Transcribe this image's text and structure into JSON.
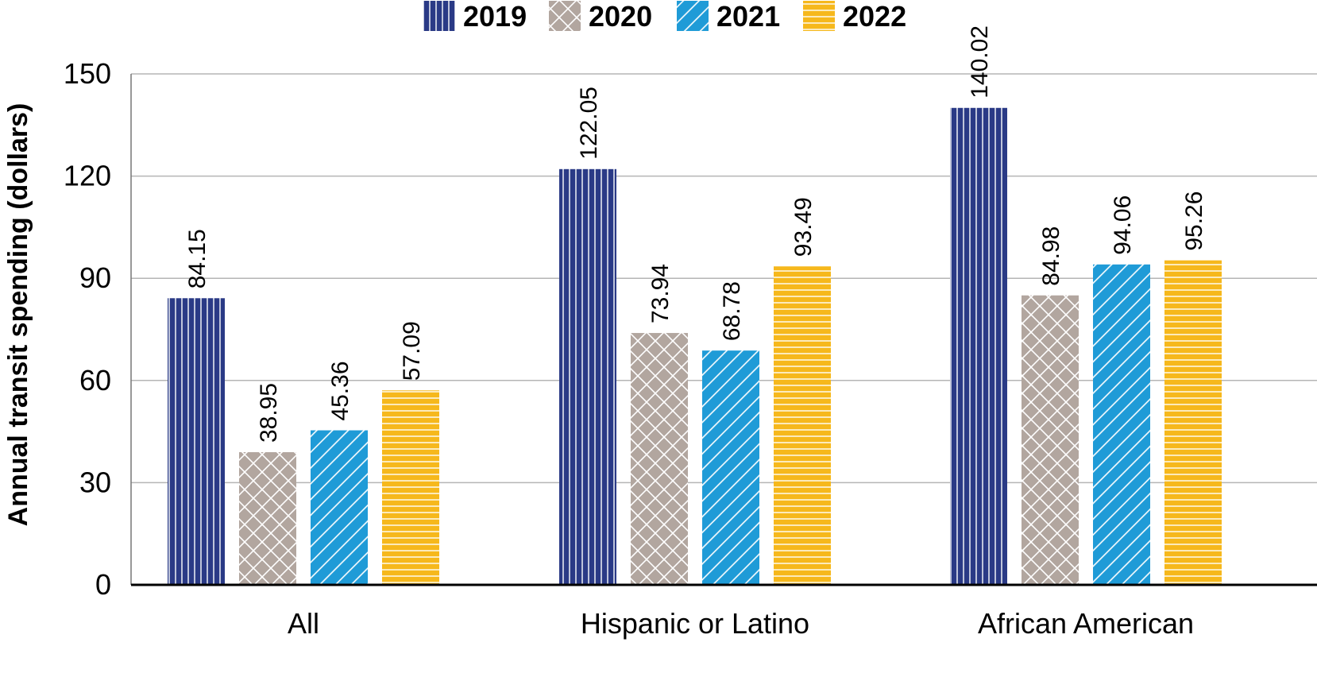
{
  "chart_data": {
    "type": "bar",
    "title": "",
    "xlabel": "",
    "ylabel": "Annual transit spending (dollars)",
    "ylim": [
      0,
      150
    ],
    "yticks": [
      0,
      30,
      60,
      90,
      120,
      150
    ],
    "grid": true,
    "legend_position": "top-center",
    "categories": [
      "All",
      "Hispanic or Latino",
      "African American"
    ],
    "series": [
      {
        "name": "2019",
        "values": [
          84.15,
          122.05,
          140.02
        ],
        "color": "#2a3a86",
        "pattern": "vertical-lines"
      },
      {
        "name": "2020",
        "values": [
          38.95,
          73.94,
          84.98
        ],
        "color": "#b2a69f",
        "pattern": "crosshatch"
      },
      {
        "name": "2021",
        "values": [
          45.36,
          68.78,
          94.06
        ],
        "color": "#1f9bd7",
        "pattern": "diagonal-lines"
      },
      {
        "name": "2022",
        "values": [
          57.09,
          93.49,
          95.26
        ],
        "color": "#f6b81c",
        "pattern": "horizontal-lines"
      }
    ]
  }
}
